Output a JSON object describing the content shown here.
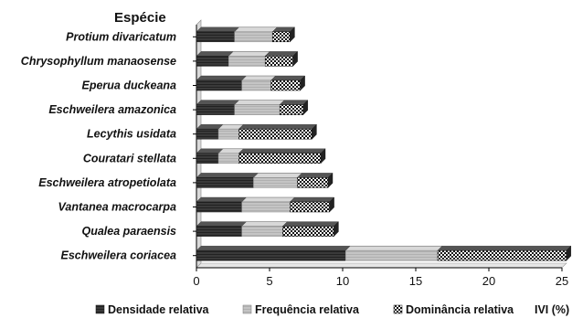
{
  "chart_data": {
    "type": "bar",
    "stacked": true,
    "orientation": "horizontal",
    "title": "",
    "ylabel": "Espécie",
    "xlabel": "IVI (%)",
    "xlim": [
      0,
      25
    ],
    "xticks": [
      0,
      5,
      10,
      15,
      20,
      25
    ],
    "grid": false,
    "legend_position": "bottom",
    "categories": [
      "Protium divaricatum",
      "Chrysophyllum manaosense",
      "Eperua duckeana",
      "Eschweilera amazonica",
      "Lecythis usidata",
      "Couratari stellata",
      "Eschweilera atropetiolata",
      "Vantanea macrocarpa",
      "Qualea paraensis",
      "Eschweilera coriacea"
    ],
    "series": [
      {
        "name": "Densidade relativa",
        "color": "#333333",
        "pattern": "solid-dark",
        "values": [
          2.6,
          2.2,
          3.1,
          2.6,
          1.5,
          1.5,
          3.9,
          3.1,
          3.1,
          10.2
        ]
      },
      {
        "name": "Frequência relativa",
        "color": "#bdbdbd",
        "pattern": "solid-light",
        "values": [
          2.6,
          2.5,
          2.0,
          3.1,
          1.4,
          1.4,
          3.0,
          3.3,
          2.8,
          6.3
        ]
      },
      {
        "name": "Dominância relativa",
        "color": "#1a1a1a",
        "pattern": "checker",
        "values": [
          1.2,
          1.9,
          2.0,
          1.6,
          5.0,
          5.6,
          2.1,
          2.7,
          3.5,
          8.8
        ]
      }
    ]
  }
}
